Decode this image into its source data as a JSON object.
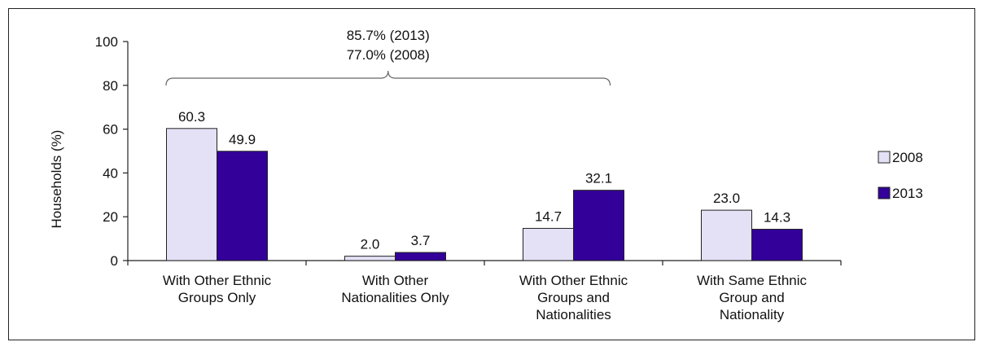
{
  "chart_data": {
    "type": "bar",
    "title": "",
    "xlabel": "",
    "ylabel": "Households  (%)",
    "ylim": [
      0,
      100
    ],
    "yticks": [
      "0",
      "20",
      "40",
      "60",
      "80",
      "100"
    ],
    "categories": [
      [
        "With Other Ethnic",
        "Groups Only"
      ],
      [
        "With Other",
        "Nationalities Only"
      ],
      [
        "With Other Ethnic",
        "Groups and",
        "Nationalities"
      ],
      [
        "With Same Ethnic",
        "Group and",
        "Nationality"
      ]
    ],
    "series": [
      {
        "name": "2008",
        "values": [
          60.3,
          2.0,
          14.7,
          23.0
        ],
        "labels": [
          "60.3",
          "2.0",
          "14.7",
          "23.0"
        ],
        "color": "#e4e0f6"
      },
      {
        "name": "2013",
        "values": [
          49.9,
          3.7,
          32.1,
          14.3
        ],
        "labels": [
          "49.9",
          "3.7",
          "32.1",
          "14.3"
        ],
        "color": "#330099"
      }
    ],
    "legend_position": "right",
    "annotation": {
      "lines": [
        "85.7% (2013)",
        "77.0% (2008)"
      ],
      "spans_categories": [
        0,
        2
      ]
    },
    "grid": false
  }
}
